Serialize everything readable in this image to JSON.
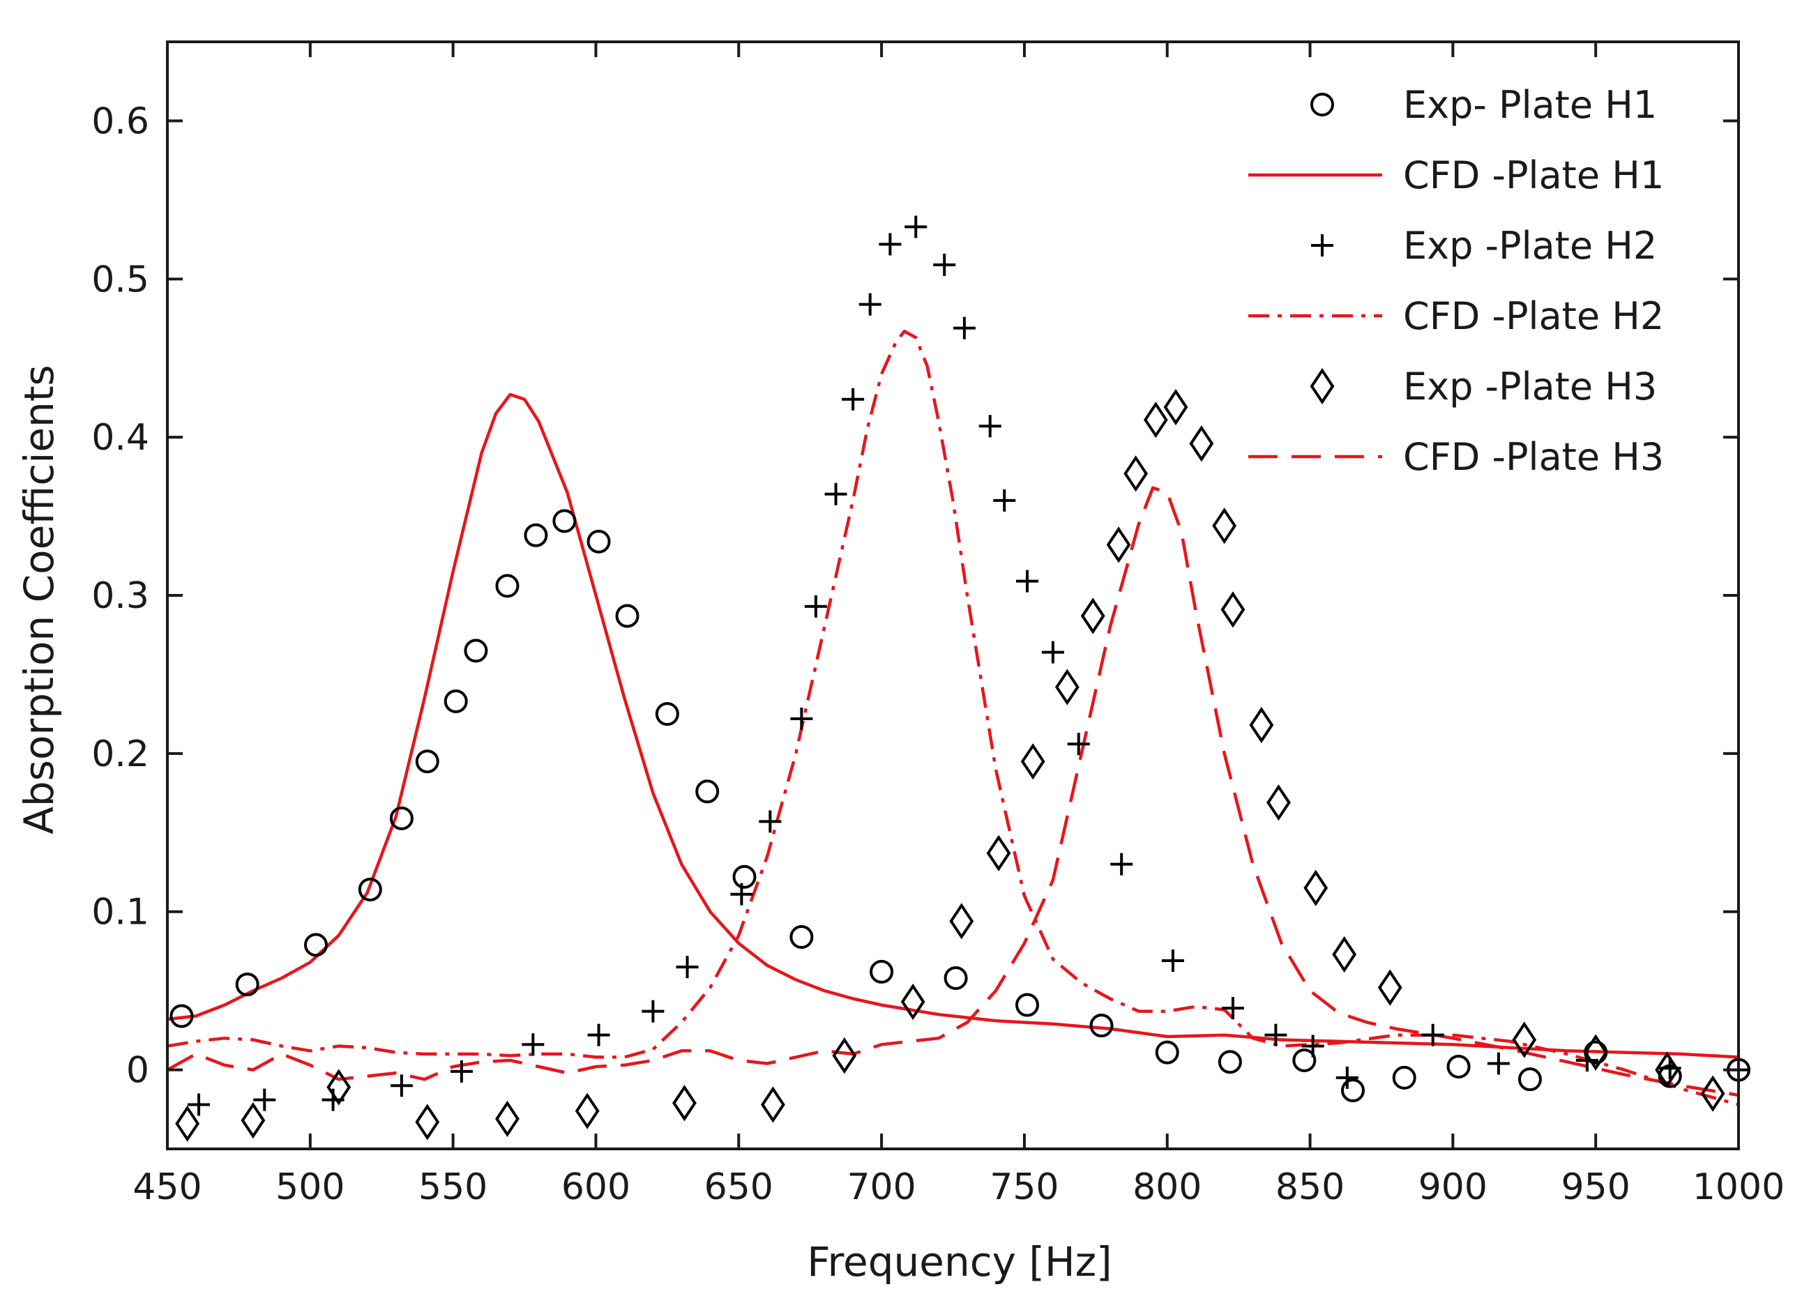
{
  "chart_data": {
    "type": "line",
    "title": "",
    "xlabel": "Frequency [Hz]",
    "ylabel": "Absorption Coefficients",
    "xlim": [
      450,
      1000
    ],
    "ylim": [
      -0.05,
      0.65
    ],
    "xticks": [
      450,
      500,
      550,
      600,
      650,
      700,
      750,
      800,
      850,
      900,
      950,
      1000
    ],
    "yticks": [
      0,
      0.1,
      0.2,
      0.3,
      0.4,
      0.5,
      0.6
    ],
    "xtick_labels": [
      "450",
      "500",
      "550",
      "600",
      "650",
      "700",
      "750",
      "800",
      "850",
      "900",
      "950",
      "1000"
    ],
    "ytick_labels": [
      "0",
      "0.1",
      "0.2",
      "0.3",
      "0.4",
      "0.5",
      "0.6"
    ],
    "grid": false,
    "legend_position": "top-right",
    "series": [
      {
        "name": "Exp- Plate H1",
        "kind": "marker",
        "marker": "circle",
        "color": "#000000",
        "x": [
          455,
          478,
          502,
          521,
          532,
          541,
          551,
          558,
          569,
          579,
          589,
          601,
          611,
          625,
          639,
          652,
          672,
          700,
          726,
          751,
          777,
          800,
          822,
          848,
          865,
          883,
          902,
          927,
          950,
          976,
          1000
        ],
        "y": [
          0.034,
          0.054,
          0.079,
          0.114,
          0.159,
          0.195,
          0.233,
          0.265,
          0.306,
          0.338,
          0.347,
          0.334,
          0.287,
          0.225,
          0.176,
          0.122,
          0.084,
          0.062,
          0.058,
          0.041,
          0.028,
          0.011,
          0.005,
          0.006,
          -0.013,
          -0.005,
          0.002,
          -0.006,
          0.011,
          -0.004,
          0.0
        ]
      },
      {
        "name": "CFD -Plate H1",
        "kind": "line",
        "dash": "solid",
        "color": "#e8151b",
        "x": [
          450,
          460,
          470,
          480,
          490,
          500,
          510,
          520,
          530,
          540,
          550,
          560,
          565,
          570,
          575,
          580,
          590,
          600,
          610,
          620,
          630,
          640,
          650,
          660,
          670,
          680,
          690,
          700,
          720,
          740,
          760,
          780,
          800,
          820,
          840,
          860,
          880,
          900,
          920,
          940,
          960,
          980,
          1000
        ],
        "y": [
          0.032,
          0.034,
          0.041,
          0.05,
          0.058,
          0.068,
          0.085,
          0.112,
          0.16,
          0.235,
          0.315,
          0.39,
          0.415,
          0.427,
          0.424,
          0.41,
          0.365,
          0.3,
          0.235,
          0.175,
          0.13,
          0.1,
          0.08,
          0.066,
          0.057,
          0.05,
          0.045,
          0.041,
          0.035,
          0.031,
          0.029,
          0.026,
          0.021,
          0.022,
          0.019,
          0.018,
          0.017,
          0.016,
          0.014,
          0.012,
          0.011,
          0.01,
          0.008
        ]
      },
      {
        "name": "Exp -Plate H2",
        "kind": "marker",
        "marker": "plus",
        "color": "#000000",
        "x": [
          461,
          484,
          508,
          532,
          553,
          578,
          601,
          620,
          632,
          651,
          661,
          672,
          677,
          684,
          690,
          696,
          703,
          712,
          722,
          729,
          738,
          743,
          751,
          760,
          769,
          784,
          802,
          823,
          838,
          851,
          863,
          893,
          916,
          947,
          976,
          1000
        ],
        "y": [
          -0.022,
          -0.019,
          -0.019,
          -0.01,
          -0.001,
          0.016,
          0.022,
          0.037,
          0.065,
          0.111,
          0.157,
          0.222,
          0.293,
          0.364,
          0.424,
          0.484,
          0.522,
          0.533,
          0.509,
          0.469,
          0.407,
          0.36,
          0.309,
          0.264,
          0.206,
          0.13,
          0.069,
          0.039,
          0.022,
          0.015,
          -0.005,
          0.022,
          0.004,
          0.006,
          0.001,
          0.0
        ]
      },
      {
        "name": "CFD -Plate H2",
        "kind": "line",
        "dash": "dashdot",
        "color": "#e8151b",
        "x": [
          450,
          460,
          470,
          480,
          490,
          500,
          510,
          520,
          530,
          540,
          550,
          560,
          570,
          580,
          590,
          600,
          610,
          620,
          630,
          640,
          650,
          660,
          670,
          680,
          690,
          695,
          700,
          705,
          708,
          712,
          716,
          720,
          725,
          730,
          740,
          750,
          760,
          770,
          780,
          790,
          800,
          810,
          820,
          830,
          840,
          860,
          880,
          900,
          920,
          940,
          960,
          980,
          1000
        ],
        "y": [
          0.015,
          0.018,
          0.02,
          0.019,
          0.015,
          0.012,
          0.015,
          0.014,
          0.011,
          0.01,
          0.01,
          0.01,
          0.009,
          0.01,
          0.01,
          0.008,
          0.008,
          0.013,
          0.03,
          0.052,
          0.085,
          0.135,
          0.2,
          0.28,
          0.36,
          0.405,
          0.44,
          0.46,
          0.467,
          0.463,
          0.445,
          0.41,
          0.36,
          0.3,
          0.19,
          0.11,
          0.07,
          0.055,
          0.045,
          0.037,
          0.037,
          0.04,
          0.038,
          0.02,
          0.015,
          0.017,
          0.022,
          0.022,
          0.018,
          0.01,
          0.0,
          -0.012,
          -0.022
        ]
      },
      {
        "name": "Exp -Plate H3",
        "kind": "marker",
        "marker": "diamond",
        "color": "#000000",
        "x": [
          457,
          480,
          510,
          541,
          569,
          597,
          631,
          662,
          687,
          711,
          728,
          741,
          753,
          765,
          774,
          783,
          789,
          796,
          803,
          812,
          820,
          823,
          833,
          839,
          852,
          862,
          878,
          925,
          950,
          975,
          991
        ],
        "y": [
          -0.034,
          -0.032,
          -0.011,
          -0.033,
          -0.031,
          -0.026,
          -0.021,
          -0.022,
          0.009,
          0.043,
          0.094,
          0.137,
          0.195,
          0.242,
          0.287,
          0.332,
          0.377,
          0.411,
          0.419,
          0.396,
          0.344,
          0.291,
          0.218,
          0.169,
          0.115,
          0.073,
          0.052,
          0.019,
          0.011,
          0.0,
          -0.015
        ]
      },
      {
        "name": "CFD -Plate H3",
        "kind": "line",
        "dash": "dashed",
        "color": "#e8151b",
        "x": [
          450,
          460,
          470,
          480,
          490,
          500,
          510,
          520,
          530,
          540,
          550,
          560,
          570,
          580,
          590,
          600,
          610,
          620,
          630,
          640,
          650,
          660,
          670,
          680,
          690,
          700,
          710,
          720,
          730,
          740,
          750,
          760,
          770,
          780,
          790,
          795,
          800,
          805,
          810,
          820,
          830,
          840,
          850,
          860,
          870,
          880,
          900,
          920,
          940,
          960,
          980,
          1000
        ],
        "y": [
          0.0,
          0.01,
          0.003,
          0.0,
          0.01,
          0.003,
          -0.006,
          -0.004,
          -0.002,
          -0.006,
          0.002,
          0.005,
          0.006,
          0.002,
          -0.002,
          0.002,
          0.003,
          0.006,
          0.012,
          0.012,
          0.006,
          0.004,
          0.008,
          0.012,
          0.01,
          0.016,
          0.018,
          0.02,
          0.03,
          0.05,
          0.08,
          0.12,
          0.2,
          0.28,
          0.345,
          0.368,
          0.365,
          0.34,
          0.29,
          0.2,
          0.13,
          0.08,
          0.05,
          0.036,
          0.03,
          0.026,
          0.02,
          0.013,
          0.005,
          -0.003,
          -0.01,
          -0.016
        ]
      }
    ]
  }
}
